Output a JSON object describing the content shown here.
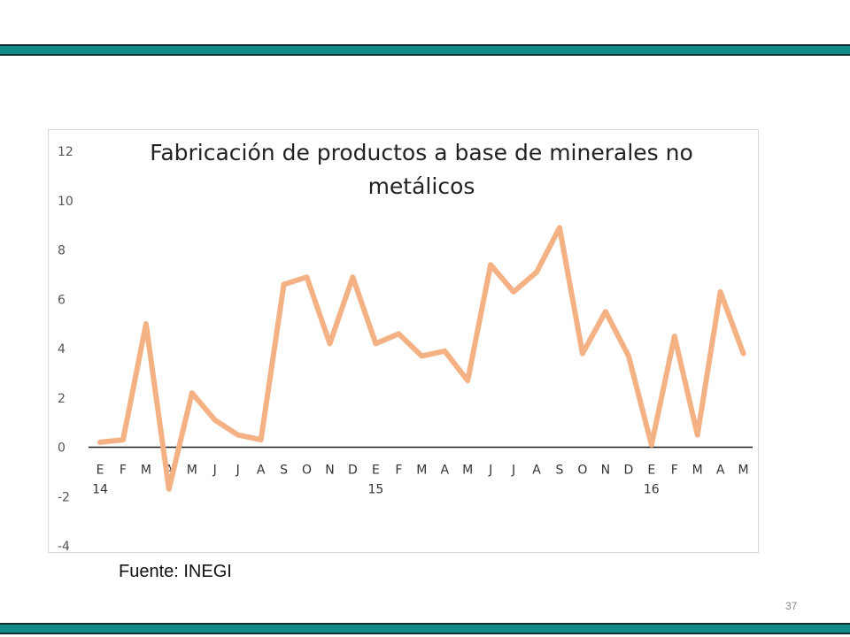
{
  "slide": {
    "source": "Fuente: INEGI",
    "page_number": "37",
    "band_color": "#138a8a"
  },
  "chart_data": {
    "type": "line",
    "title": "Fabricación de productos a base de minerales no metálicos",
    "title_lines": [
      "Fabricación de productos a base de minerales no",
      "metálicos"
    ],
    "categories": [
      "E",
      "F",
      "M",
      "A",
      "M",
      "J",
      "J",
      "A",
      "S",
      "O",
      "N",
      "D",
      "E",
      "F",
      "M",
      "A",
      "M",
      "J",
      "J",
      "A",
      "S",
      "O",
      "N",
      "D",
      "E",
      "F",
      "M",
      "A",
      "M"
    ],
    "year_labels": [
      {
        "index": 0,
        "label": "14"
      },
      {
        "index": 12,
        "label": "15"
      },
      {
        "index": 24,
        "label": "16"
      }
    ],
    "series": [
      {
        "color": "#f4b183",
        "values": [
          0.2,
          0.3,
          5.0,
          -1.7,
          2.2,
          1.1,
          0.5,
          0.3,
          6.6,
          6.9,
          4.2,
          6.9,
          4.2,
          4.6,
          3.7,
          3.9,
          2.7,
          7.4,
          6.3,
          7.1,
          8.9,
          3.8,
          5.5,
          3.7,
          0.1,
          4.5,
          0.5,
          6.3,
          3.8
        ]
      }
    ],
    "ylim": [
      -4,
      12
    ],
    "yticks": [
      -4,
      -2,
      0,
      2,
      4,
      6,
      8,
      10,
      12
    ],
    "grid": false,
    "legend": "none"
  }
}
